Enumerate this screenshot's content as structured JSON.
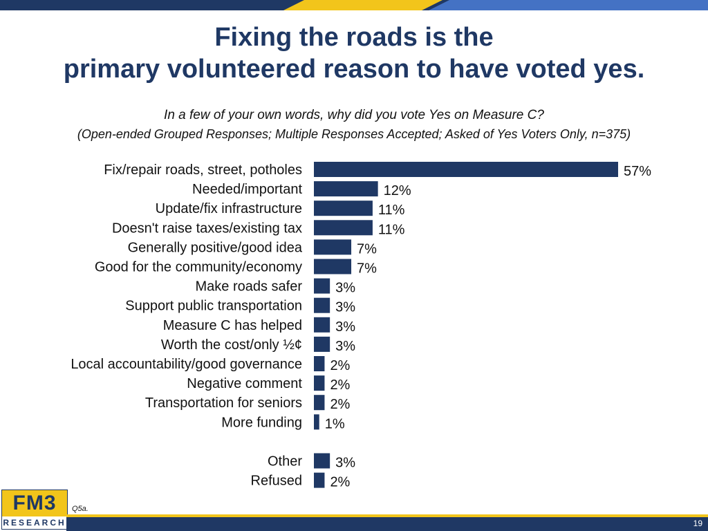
{
  "slide": {
    "title_line_1": "Fixing the roads is the",
    "title_line_2": "primary volunteered reason to have voted yes.",
    "question": "In a few of your own words, why did you vote Yes on Measure C?",
    "note": "(Open-ended Grouped Responses; Multiple Responses Accepted; Asked of Yes Voters Only, n=375)",
    "source": "Q5a.",
    "page_number": "19",
    "logo_main": "FM3",
    "logo_sub": "RESEARCH"
  },
  "colors": {
    "bar": "#1f3864",
    "band_navy": "#1f3864",
    "band_gold": "#f2c51b",
    "band_blue": "#4472c4"
  },
  "chart_data": {
    "type": "bar",
    "orientation": "horizontal",
    "value_format": "percent",
    "categories": [
      "Fix/repair roads, street, potholes",
      "Needed/important",
      "Update/fix infrastructure",
      "Doesn't raise taxes/existing tax",
      "Generally positive/good idea",
      "Good for the community/economy",
      "Make roads safer",
      "Support public transportation",
      "Measure C has helped",
      "Worth the cost/only ½¢",
      "Local accountability/good governance",
      "Negative comment",
      "Transportation for seniors",
      "More funding",
      "Other",
      "Refused"
    ],
    "values": [
      57,
      12,
      11,
      11,
      7,
      7,
      3,
      3,
      3,
      3,
      2,
      2,
      2,
      1,
      3,
      2
    ],
    "data_labels": [
      "57%",
      "12%",
      "11%",
      "11%",
      "7%",
      "7%",
      "3%",
      "3%",
      "3%",
      "3%",
      "2%",
      "2%",
      "2%",
      "1%",
      "3%",
      "2%"
    ],
    "gap_before_index": 14,
    "xlim": [
      0,
      57
    ],
    "title": "",
    "xlabel": "",
    "ylabel": "",
    "grid": false,
    "legend": "none"
  }
}
